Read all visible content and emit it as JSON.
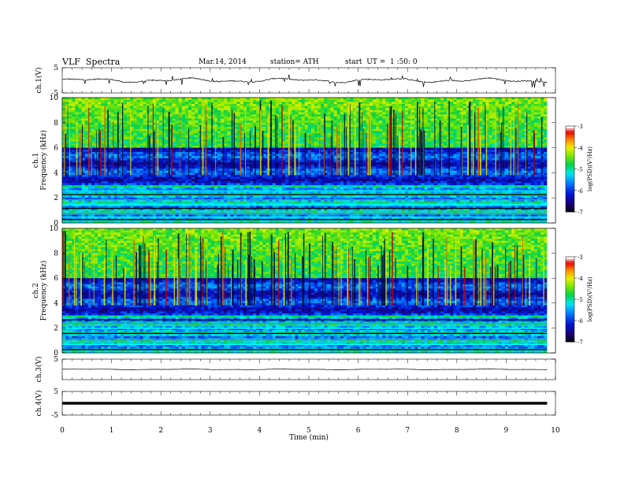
{
  "header": {
    "title": "VLF  Spectra",
    "date": "Mar.14, 2014",
    "station": "station= ATH",
    "start": "start  UT =  1 :50: 0"
  },
  "chart_data": [
    {
      "type": "line",
      "panel": "ch1-waveform",
      "ylabel": "ch.1(V)",
      "yticks": [
        "5",
        "-5"
      ],
      "ylim": [
        -5,
        5
      ],
      "xlim": [
        0,
        10
      ],
      "y_nominal": 0,
      "color": "#000000"
    },
    {
      "type": "heatmap",
      "panel": "ch1-spectrogram",
      "ylabel": [
        "ch.1",
        "Frequency  (kHz)"
      ],
      "yticks": [
        "0",
        "2",
        "4",
        "6",
        "8",
        "10"
      ],
      "ylim": [
        0,
        10
      ],
      "xlim": [
        0,
        9.83
      ],
      "colorbar": {
        "label": "log(PSD)(V²/Hz)",
        "ticks": [
          "-3",
          "-4",
          "-5",
          "-6",
          "-7"
        ],
        "range": [
          -7,
          -3
        ]
      }
    },
    {
      "type": "heatmap",
      "panel": "ch2-spectrogram",
      "ylabel": [
        "ch.2",
        "Frequency  (kHz)"
      ],
      "yticks": [
        "0",
        "2",
        "4",
        "6",
        "8",
        "10"
      ],
      "ylim": [
        0,
        10
      ],
      "xlim": [
        0,
        9.83
      ],
      "colorbar": {
        "label": "log(PSD)(V²/Hz)",
        "ticks": [
          "-3",
          "-4",
          "-5",
          "-6",
          "-7"
        ],
        "range": [
          -7,
          -3
        ]
      }
    },
    {
      "type": "line",
      "panel": "ch3-waveform",
      "ylabel": "ch.3(V)",
      "yticks": [
        "5"
      ],
      "ylim": [
        -5,
        5
      ],
      "xlim": [
        0,
        10
      ],
      "y_nominal": 0,
      "color": "#000000"
    },
    {
      "type": "line",
      "panel": "ch4-waveform",
      "ylabel": "ch.4(V)",
      "yticks": [
        "5",
        "-5"
      ],
      "ylim": [
        -5,
        5
      ],
      "xlim": [
        0,
        10
      ],
      "y_nominal": 0,
      "color": "#000000"
    }
  ],
  "xaxis": {
    "label": "Time  (min)",
    "ticks": [
      "0",
      "1",
      "2",
      "3",
      "4",
      "5",
      "6",
      "7",
      "8",
      "9",
      "10"
    ]
  }
}
